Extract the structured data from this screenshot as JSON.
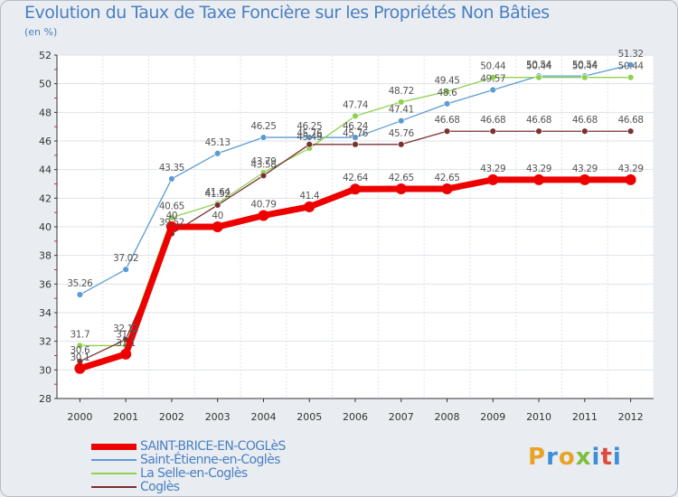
{
  "chart_data": {
    "type": "line",
    "title": "Evolution du Taux de Taxe Foncière sur les Propriétés Non Bâties",
    "ylabel": "(en %)",
    "xlabel": "",
    "x": [
      "2000",
      "2001",
      "2002",
      "2003",
      "2004",
      "2005",
      "2006",
      "2007",
      "2008",
      "2009",
      "2010",
      "2011",
      "2012"
    ],
    "ylim": [
      28,
      52
    ],
    "yticks": [
      28,
      30,
      32,
      34,
      36,
      38,
      40,
      42,
      44,
      46,
      48,
      50,
      52
    ],
    "legend_position": "bottom-left",
    "series": [
      {
        "name": "SAINT-BRICE-EN-COGLèS",
        "color": "#ee0000",
        "values": [
          30.1,
          31.1,
          40,
          40,
          40.79,
          41.4,
          42.64,
          42.65,
          42.65,
          43.29,
          43.29,
          43.29,
          43.29
        ],
        "labels": [
          "30.1",
          "31.1",
          "40",
          "40",
          "40.79",
          "41.4",
          "42.64",
          "42.65",
          "42.65",
          "43.29",
          "43.29",
          "43.29",
          "43.29"
        ]
      },
      {
        "name": "Saint-Étienne-en-Coglès",
        "color": "#5b9bd5",
        "values": [
          35.26,
          37.02,
          43.35,
          45.13,
          46.25,
          46.25,
          46.24,
          47.41,
          48.6,
          49.57,
          50.54,
          50.54,
          51.32
        ],
        "labels": [
          "35.26",
          "37.02",
          "43.35",
          "45.13",
          "46.25",
          "46.25",
          "46.24",
          "47.41",
          "48.6",
          "49.57",
          "50.54",
          "50.54",
          "51.32"
        ]
      },
      {
        "name": "La Selle-en-Coglès",
        "color": "#8fd14f",
        "values": [
          31.7,
          31.7,
          40.65,
          41.64,
          43.79,
          45.49,
          47.74,
          48.72,
          49.45,
          50.44,
          50.44,
          50.44,
          50.44
        ],
        "labels": [
          "31.7",
          "31.7",
          "40.65",
          "41.64",
          "43.79",
          "45.49",
          "47.74",
          "48.72",
          "49.45",
          "50.44",
          "50.44",
          "50.44",
          "50.44"
        ]
      },
      {
        "name": "Coglès",
        "color": "#7a3030",
        "values": [
          30.6,
          32.12,
          39.52,
          41.52,
          43.58,
          45.76,
          45.76,
          45.76,
          46.68,
          46.68,
          46.68,
          46.68,
          46.68
        ],
        "labels": [
          "30.6",
          "32.12",
          "39.52",
          "41.52",
          "43.58",
          "45.76",
          "45.76",
          "45.76",
          "46.68",
          "46.68",
          "46.68",
          "46.68",
          "46.68"
        ]
      }
    ]
  },
  "logo": {
    "text": "Proxiti",
    "colors": [
      "#e8a326",
      "#3b8fd6",
      "#e8a326",
      "#7dbf3b",
      "#3b8fd6",
      "#e04a3c",
      "#3b8fd6"
    ]
  }
}
